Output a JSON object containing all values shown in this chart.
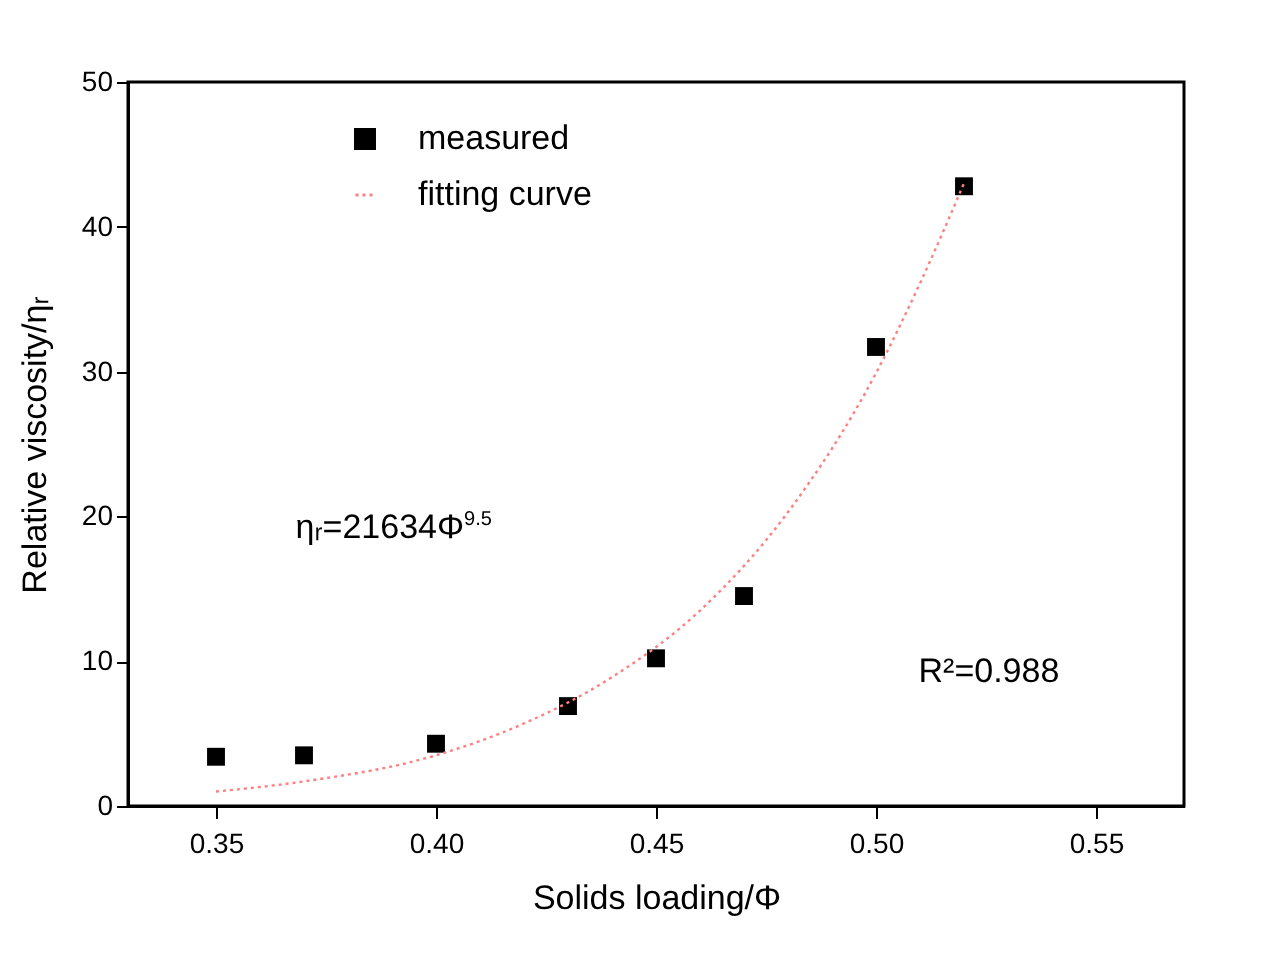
{
  "chart_data": {
    "type": "scatter",
    "xlabel": "Solids loading/Φ",
    "ylabel": "Relative viscosity/ηᵣ",
    "x": [
      0.35,
      0.37,
      0.4,
      0.43,
      0.45,
      0.47,
      0.5,
      0.52
    ],
    "series": [
      {
        "name": "measured",
        "color": "#000000",
        "marker": "square",
        "values": [
          3.4,
          3.5,
          4.3,
          6.9,
          10.2,
          14.5,
          31.7,
          42.8
        ]
      },
      {
        "name": "fitting curve",
        "type": "line",
        "color": "#ff8080",
        "line_style": "dotted",
        "marker": "none",
        "x": [
          0.35,
          0.37,
          0.4,
          0.42,
          0.44,
          0.46,
          0.48,
          0.5,
          0.51,
          0.52
        ],
        "values": [
          1.0,
          1.7,
          3.5,
          5.7,
          8.9,
          13.5,
          20.3,
          29.9,
          36.1,
          43.0
        ]
      }
    ],
    "annotations": [
      "ηᵣ=21634Φ$^{9.5}$",
      "R²=0.988"
    ],
    "xlim": [
      0.33,
      0.57
    ],
    "xticks": [
      {
        "value": 0.35,
        "label": "0.35"
      },
      {
        "value": 0.4,
        "label": "0.40"
      },
      {
        "value": 0.45,
        "label": "0.45"
      },
      {
        "value": 0.5,
        "label": "0.50"
      },
      {
        "value": 0.55,
        "label": "0.55"
      }
    ],
    "ylim": [
      0,
      50
    ],
    "yticks": [
      0,
      10,
      20,
      30,
      40,
      50
    ],
    "grid": false,
    "legend": "top left"
  }
}
